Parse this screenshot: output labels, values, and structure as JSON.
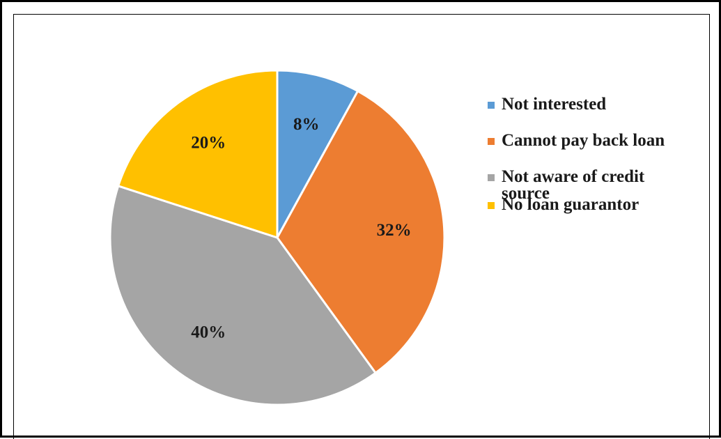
{
  "chart_data": {
    "type": "pie",
    "categories": [
      "Not interested",
      "Cannot pay back loan",
      "Not aware of credit source",
      "No loan guarantor"
    ],
    "values": [
      8,
      32,
      40,
      20
    ],
    "data_labels": [
      "8%",
      "32%",
      "40%",
      "20%"
    ],
    "colors": [
      "#5b9bd5",
      "#ed7d31",
      "#a5a5a5",
      "#ffc000"
    ],
    "legend_position": "right",
    "title": ""
  }
}
